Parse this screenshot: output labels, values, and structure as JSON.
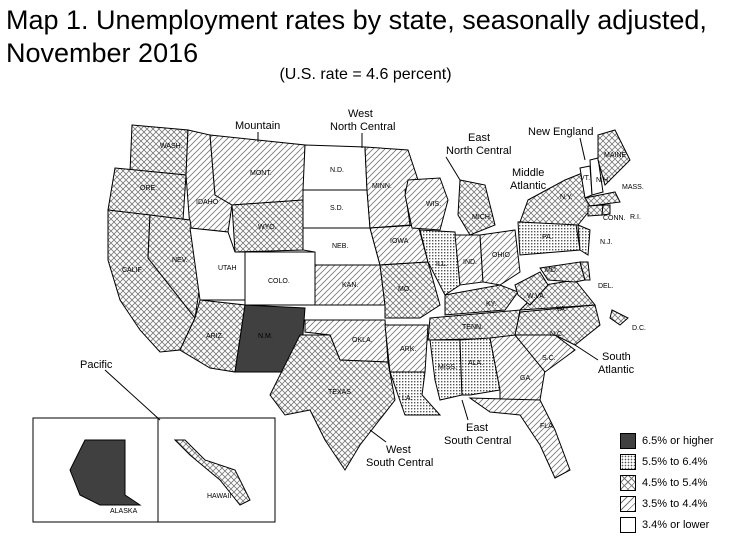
{
  "title_line1": "Map 1. Unemployment rates by state, seasonally adjusted,",
  "title_line2": "November 2016",
  "subtitle": "(U.S. rate = 4.6 percent)",
  "regions": {
    "mountain": "Mountain",
    "west_north_central": [
      "West",
      "North Central"
    ],
    "east_north_central": [
      "East",
      "North Central"
    ],
    "new_england": "New England",
    "middle_atlantic": [
      "Middle",
      "Atlantic"
    ],
    "pacific": "Pacific",
    "south_atlantic": [
      "South",
      "Atlantic"
    ],
    "east_south_central": [
      "East",
      "South Central"
    ],
    "west_south_central": [
      "West",
      "South Central"
    ]
  },
  "legend": [
    {
      "label": "6.5% or higher",
      "pattern": "solid",
      "color": "#404040"
    },
    {
      "label": "5.5% to 6.4%",
      "pattern": "dots"
    },
    {
      "label": "4.5% to 5.4%",
      "pattern": "cross"
    },
    {
      "label": "3.5% to 4.4%",
      "pattern": "diag"
    },
    {
      "label": "3.4% or lower",
      "pattern": "white"
    }
  ],
  "states": {
    "wash": "WASH.",
    "ore": "ORE.",
    "calif": "CALIF.",
    "idaho": "IDAHO",
    "nev": "NEV.",
    "mont": "MONT.",
    "wyo": "WYO.",
    "utah": "UTAH",
    "colo": "COLO.",
    "ariz": "ARIZ.",
    "nm": "N.M.",
    "nd": "N.D.",
    "sd": "S.D.",
    "neb": "NEB.",
    "kan": "KAN.",
    "minn": "MINN.",
    "iowa": "IOWA",
    "mo": "MO.",
    "okla": "OKLA.",
    "texas": "TEXAS",
    "ark": "ARK.",
    "la": "LA.",
    "wis": "WIS.",
    "mich": "MICH.",
    "ill": "ILL.",
    "ind": "IND.",
    "ohio": "OHIO",
    "ky": "KY.",
    "tenn": "TENN.",
    "miss": "MISS.",
    "ala": "ALA.",
    "ga": "GA.",
    "fla": "FLA.",
    "sc": "S.C.",
    "nc": "N.C.",
    "va": "VA.",
    "wva": "W.VA.",
    "md": "MD.",
    "del": "DEL.",
    "dc": "D.C.",
    "pa": "PA.",
    "nj": "N.J.",
    "ny": "N.Y.",
    "conn": "CONN.",
    "ri": "R.I.",
    "mass": "MASS.",
    "vt": "VT.",
    "nh": "N.H.",
    "maine": "MAINE",
    "alaska": "ALASKA",
    "hawaii": "HAWAII"
  }
}
